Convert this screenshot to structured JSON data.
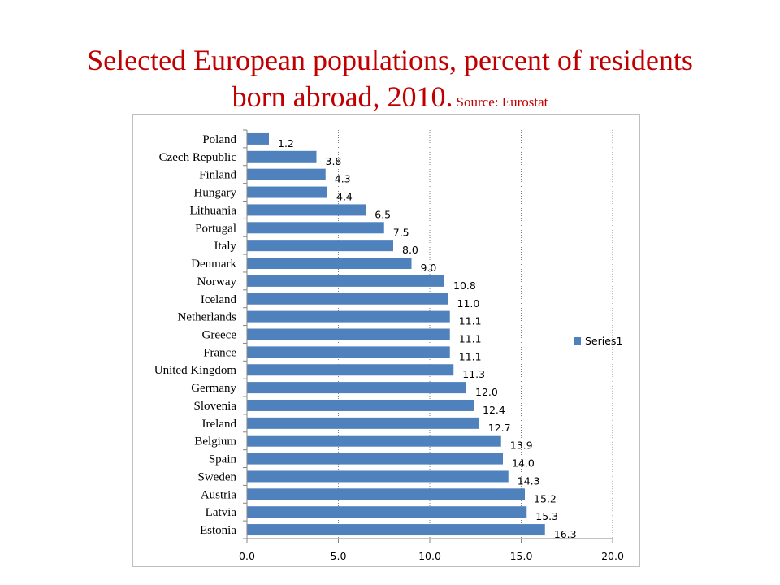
{
  "title": {
    "main_line1": "Selected European populations, percent of residents",
    "main_line2": "born abroad, 2010.",
    "source": "Source: Eurostat"
  },
  "chart_data": {
    "type": "bar",
    "orientation": "horizontal",
    "categories": [
      "Poland",
      "Czech Republic",
      "Finland",
      "Hungary",
      "Lithuania",
      "Portugal",
      "Italy",
      "Denmark",
      "Norway",
      "Iceland",
      "Netherlands",
      "Greece",
      "France",
      "United Kingdom",
      "Germany",
      "Slovenia",
      "Ireland",
      "Belgium",
      "Spain",
      "Sweden",
      "Austria",
      "Latvia",
      "Estonia"
    ],
    "series": [
      {
        "name": "Series1",
        "values": [
          1.2,
          3.8,
          4.3,
          4.4,
          6.5,
          7.5,
          8.0,
          9.0,
          10.8,
          11.0,
          11.1,
          11.1,
          11.1,
          11.3,
          12.0,
          12.4,
          12.7,
          13.9,
          14.0,
          14.3,
          15.2,
          15.3,
          16.3
        ]
      }
    ],
    "value_labels": [
      "1.2",
      "3.8",
      "4.3",
      "4.4",
      "6.5",
      "7.5",
      "8.0",
      "9.0",
      "10.8",
      "11.0",
      "11.1",
      "11.1",
      "11.1",
      "11.3",
      "12.0",
      "12.4",
      "12.7",
      "13.9",
      "14.0",
      "14.3",
      "15.2",
      "15.3",
      "16.3"
    ],
    "xlim": [
      0,
      20
    ],
    "xticks": [
      0,
      5,
      10,
      15,
      20
    ],
    "xtick_labels": [
      "0.0",
      "5.0",
      "10.0",
      "15.0",
      "20.0"
    ],
    "xlabel": "",
    "ylabel": "",
    "grid": "vertical dotted",
    "legend_position": "right",
    "bar_color": "#4f81bd"
  }
}
